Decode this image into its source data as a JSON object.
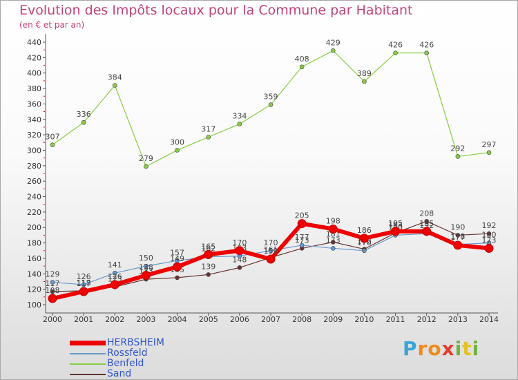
{
  "title": "Evolution des Impôts locaux pour la Commune par Habitant",
  "subtitle": "(en € et par an)",
  "chart_data": {
    "type": "line",
    "title": "Evolution des Impôts locaux pour la Commune par Habitant",
    "subtitle": "(en € et par an)",
    "x": [
      "2000",
      "2001",
      "2002",
      "2003",
      "2004",
      "2005",
      "2006",
      "2007",
      "2008",
      "2009",
      "2010",
      "2011",
      "2012",
      "2013",
      "2014"
    ],
    "ylim": [
      100,
      440
    ],
    "yticks": [
      100,
      120,
      140,
      160,
      180,
      200,
      220,
      240,
      260,
      280,
      300,
      320,
      340,
      360,
      380,
      400,
      420,
      440
    ],
    "grid": false,
    "legend_position": "bottom-left",
    "series": [
      {
        "name": "HERBSHEIM",
        "color": "#ee0000",
        "values": [
          108,
          117,
          126,
          138,
          149,
          165,
          170,
          159,
          205,
          198,
          186,
          195,
          195,
          177,
          173
        ]
      },
      {
        "name": "Rossfeld",
        "color": "#6699cc",
        "values": [
          129,
          126,
          141,
          150,
          157,
          162,
          163,
          170,
          177,
          173,
          170,
          190,
          192,
          178,
          180
        ]
      },
      {
        "name": "Benfeld",
        "color": "#88cc44",
        "values": [
          307,
          336,
          384,
          279,
          300,
          317,
          334,
          359,
          408,
          429,
          389,
          426,
          426,
          292,
          297
        ]
      },
      {
        "name": "Sand",
        "color": "#663333",
        "values": [
          117,
          118,
          123,
          133,
          135,
          139,
          148,
          161,
          173,
          181,
          172,
          193,
          208,
          190,
          192
        ]
      }
    ]
  },
  "logo": {
    "letters": [
      "P",
      "r",
      "o",
      "x",
      "i",
      "t",
      "i"
    ],
    "colors": [
      "#3aa3d8",
      "#f08a1c",
      "#f08a1c",
      "#e43d2f",
      "#6db33f",
      "#e6c21a",
      "#6db33f"
    ]
  }
}
